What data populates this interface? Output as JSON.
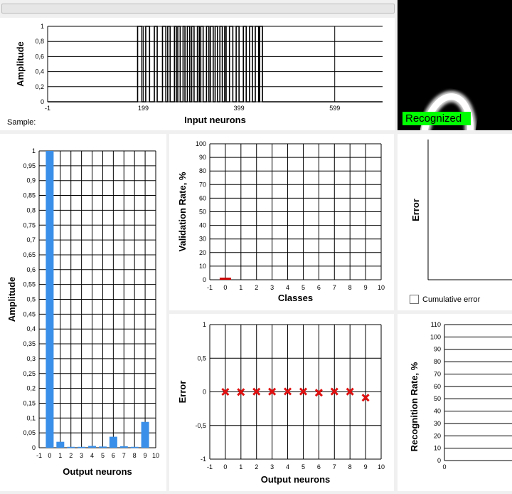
{
  "progress": {
    "value": 0
  },
  "sample": {
    "label": "Sample:"
  },
  "recognized": {
    "label": "Recognized"
  },
  "cumulative": {
    "label": "Cumulative error",
    "checked": false
  },
  "colors": {
    "bar": "#3a8fe8",
    "marker": "#e01010",
    "valBar": "#cc0000",
    "badge": "#00ff00"
  },
  "chart_data": [
    {
      "id": "input",
      "type": "line",
      "xlabel": "Input neurons",
      "ylabel": "Amplitude",
      "xlim": [
        -1,
        699
      ],
      "ylim": [
        0,
        1
      ],
      "xticks": [
        -1,
        199,
        399,
        599
      ],
      "xtick_labels": [
        "-1",
        "199",
        "399",
        "599"
      ],
      "yticks": [
        0,
        0.2,
        0.4,
        0.6,
        0.8,
        1
      ],
      "ytick_labels": [
        "0",
        "0,2",
        "0,4",
        "0,6",
        "0,8",
        "1"
      ],
      "grid": true,
      "on_ranges": [
        [
          187,
          196
        ],
        [
          204,
          212
        ],
        [
          222,
          228
        ],
        [
          239,
          246
        ],
        [
          250,
          255
        ],
        [
          264,
          268
        ],
        [
          271,
          276
        ],
        [
          282,
          286
        ],
        [
          291,
          296
        ],
        [
          300,
          305
        ],
        [
          312,
          316
        ],
        [
          319,
          324
        ],
        [
          331,
          336
        ],
        [
          339,
          345
        ],
        [
          349,
          354
        ],
        [
          359,
          364
        ],
        [
          369,
          372
        ],
        [
          379,
          386
        ],
        [
          393,
          399
        ],
        [
          408,
          414
        ],
        [
          421,
          427
        ],
        [
          433,
          440
        ],
        [
          442,
          448
        ]
      ]
    },
    {
      "id": "output",
      "type": "bar",
      "xlabel": "Output neurons",
      "ylabel": "Amplitude",
      "xlim": [
        -1,
        10
      ],
      "ylim": [
        0,
        1
      ],
      "xticks": [
        -1,
        0,
        1,
        2,
        3,
        4,
        5,
        6,
        7,
        8,
        9,
        10
      ],
      "xtick_labels": [
        "-1",
        "0",
        "1",
        "2",
        "3",
        "4",
        "5",
        "6",
        "7",
        "8",
        "9",
        "10"
      ],
      "yticks": [
        0,
        0.05,
        0.1,
        0.15,
        0.2,
        0.25,
        0.3,
        0.35,
        0.4,
        0.45,
        0.5,
        0.55,
        0.6,
        0.65,
        0.7,
        0.75,
        0.8,
        0.85,
        0.9,
        0.95,
        1
      ],
      "ytick_labels": [
        "0",
        "0,05",
        "0,1",
        "0,15",
        "0,2",
        "0,25",
        "0,3",
        "0,35",
        "0,4",
        "0,45",
        "0,5",
        "0,55",
        "0,6",
        "0,65",
        "0,7",
        "0,75",
        "0,8",
        "0,85",
        "0,9",
        "0,95",
        "1"
      ],
      "grid": true,
      "categories": [
        0,
        1,
        2,
        3,
        4,
        5,
        6,
        7,
        8,
        9
      ],
      "values": [
        1.0,
        0.02,
        0.003,
        0.003,
        0.006,
        0.004,
        0.037,
        0.005,
        0.003,
        0.087
      ]
    },
    {
      "id": "validation",
      "type": "bar",
      "xlabel": "Classes",
      "ylabel": "Validation Rate, %",
      "xlim": [
        -1,
        10
      ],
      "ylim": [
        0,
        100
      ],
      "xticks": [
        -1,
        0,
        1,
        2,
        3,
        4,
        5,
        6,
        7,
        8,
        9,
        10
      ],
      "xtick_labels": [
        "-1",
        "0",
        "1",
        "2",
        "3",
        "4",
        "5",
        "6",
        "7",
        "8",
        "9",
        "10"
      ],
      "yticks": [
        0,
        10,
        20,
        30,
        40,
        50,
        60,
        70,
        80,
        90,
        100
      ],
      "ytick_labels": [
        "0",
        "10",
        "20",
        "30",
        "40",
        "50",
        "60",
        "70",
        "80",
        "90",
        "100"
      ],
      "grid": true,
      "categories": [
        0
      ],
      "values": [
        1
      ]
    },
    {
      "id": "error",
      "type": "scatter",
      "xlabel": "Output neurons",
      "ylabel": "Error",
      "xlim": [
        -1,
        10
      ],
      "ylim": [
        -1,
        1
      ],
      "xticks": [
        -1,
        0,
        1,
        2,
        3,
        4,
        5,
        6,
        7,
        8,
        9,
        10
      ],
      "xtick_labels": [
        "-1",
        "0",
        "1",
        "2",
        "3",
        "4",
        "5",
        "6",
        "7",
        "8",
        "9",
        "10"
      ],
      "yticks": [
        -1,
        -0.5,
        0,
        0.5,
        1
      ],
      "ytick_labels": [
        "-1",
        "-0,5",
        "0",
        "0,5",
        "1"
      ],
      "grid": true,
      "x": [
        0,
        1,
        2,
        3,
        4,
        5,
        6,
        7,
        8,
        9
      ],
      "y": [
        0.0,
        -0.003,
        0.003,
        0.003,
        0.006,
        0.004,
        -0.013,
        0.005,
        0.003,
        -0.087
      ]
    },
    {
      "id": "error-top",
      "type": "line",
      "ylabel": "Error",
      "grid": false
    },
    {
      "id": "recognition",
      "type": "line",
      "ylabel": "Recognition Rate, %",
      "ylim": [
        0,
        110
      ],
      "yticks": [
        0,
        10,
        20,
        30,
        40,
        50,
        60,
        70,
        80,
        90,
        100,
        110
      ],
      "ytick_labels": [
        "0",
        "10",
        "20",
        "30",
        "40",
        "50",
        "60",
        "70",
        "80",
        "90",
        "100",
        "110"
      ],
      "xtick_labels": [
        "0"
      ],
      "grid": true
    }
  ]
}
